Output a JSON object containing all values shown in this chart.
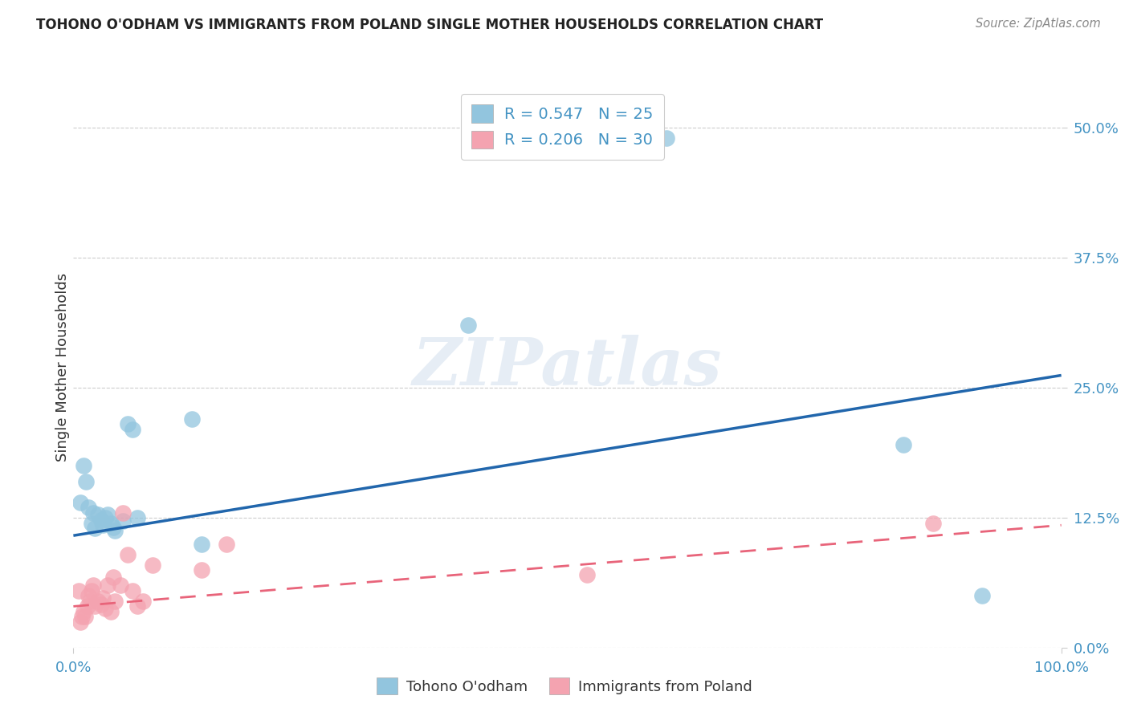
{
  "title": "TOHONO O'ODHAM VS IMMIGRANTS FROM POLAND SINGLE MOTHER HOUSEHOLDS CORRELATION CHART",
  "source": "Source: ZipAtlas.com",
  "ylabel": "Single Mother Households",
  "xlim": [
    0.0,
    1.0
  ],
  "ylim": [
    0.0,
    0.54
  ],
  "yticks": [
    0.0,
    0.125,
    0.25,
    0.375,
    0.5
  ],
  "ytick_labels": [
    "0.0%",
    "12.5%",
    "25.0%",
    "37.5%",
    "50.0%"
  ],
  "xticks": [
    0.0,
    1.0
  ],
  "xtick_labels": [
    "0.0%",
    "100.0%"
  ],
  "legend_labels": [
    "Tohono O'odham",
    "Immigrants from Poland"
  ],
  "blue_color": "#92c5de",
  "pink_color": "#f4a3b0",
  "blue_line_color": "#2166ac",
  "pink_line_color": "#e8647a",
  "tick_color": "#4393c3",
  "background_color": "#ffffff",
  "grid_color": "#cccccc",
  "blue_x": [
    0.007,
    0.01,
    0.013,
    0.015,
    0.018,
    0.02,
    0.022,
    0.025,
    0.028,
    0.03,
    0.032,
    0.035,
    0.038,
    0.04,
    0.042,
    0.05,
    0.055,
    0.06,
    0.065,
    0.12,
    0.13,
    0.4,
    0.6,
    0.84,
    0.92
  ],
  "blue_y": [
    0.14,
    0.175,
    0.16,
    0.135,
    0.12,
    0.13,
    0.115,
    0.128,
    0.123,
    0.118,
    0.125,
    0.128,
    0.12,
    0.116,
    0.113,
    0.122,
    0.215,
    0.21,
    0.125,
    0.22,
    0.1,
    0.31,
    0.49,
    0.195,
    0.05
  ],
  "pink_x": [
    0.005,
    0.007,
    0.009,
    0.01,
    0.012,
    0.014,
    0.015,
    0.017,
    0.018,
    0.02,
    0.022,
    0.025,
    0.028,
    0.03,
    0.032,
    0.035,
    0.038,
    0.04,
    0.042,
    0.048,
    0.05,
    0.055,
    0.06,
    0.065,
    0.07,
    0.08,
    0.13,
    0.155,
    0.52,
    0.87
  ],
  "pink_y": [
    0.055,
    0.025,
    0.03,
    0.035,
    0.03,
    0.04,
    0.05,
    0.045,
    0.055,
    0.06,
    0.04,
    0.045,
    0.042,
    0.048,
    0.038,
    0.06,
    0.035,
    0.068,
    0.045,
    0.06,
    0.13,
    0.09,
    0.055,
    0.04,
    0.045,
    0.08,
    0.075,
    0.1,
    0.07,
    0.12
  ],
  "blue_line_x0": 0.0,
  "blue_line_y0": 0.108,
  "blue_line_x1": 1.0,
  "blue_line_y1": 0.262,
  "pink_line_x0": 0.0,
  "pink_line_y0": 0.04,
  "pink_line_x1": 1.0,
  "pink_line_y1": 0.118
}
